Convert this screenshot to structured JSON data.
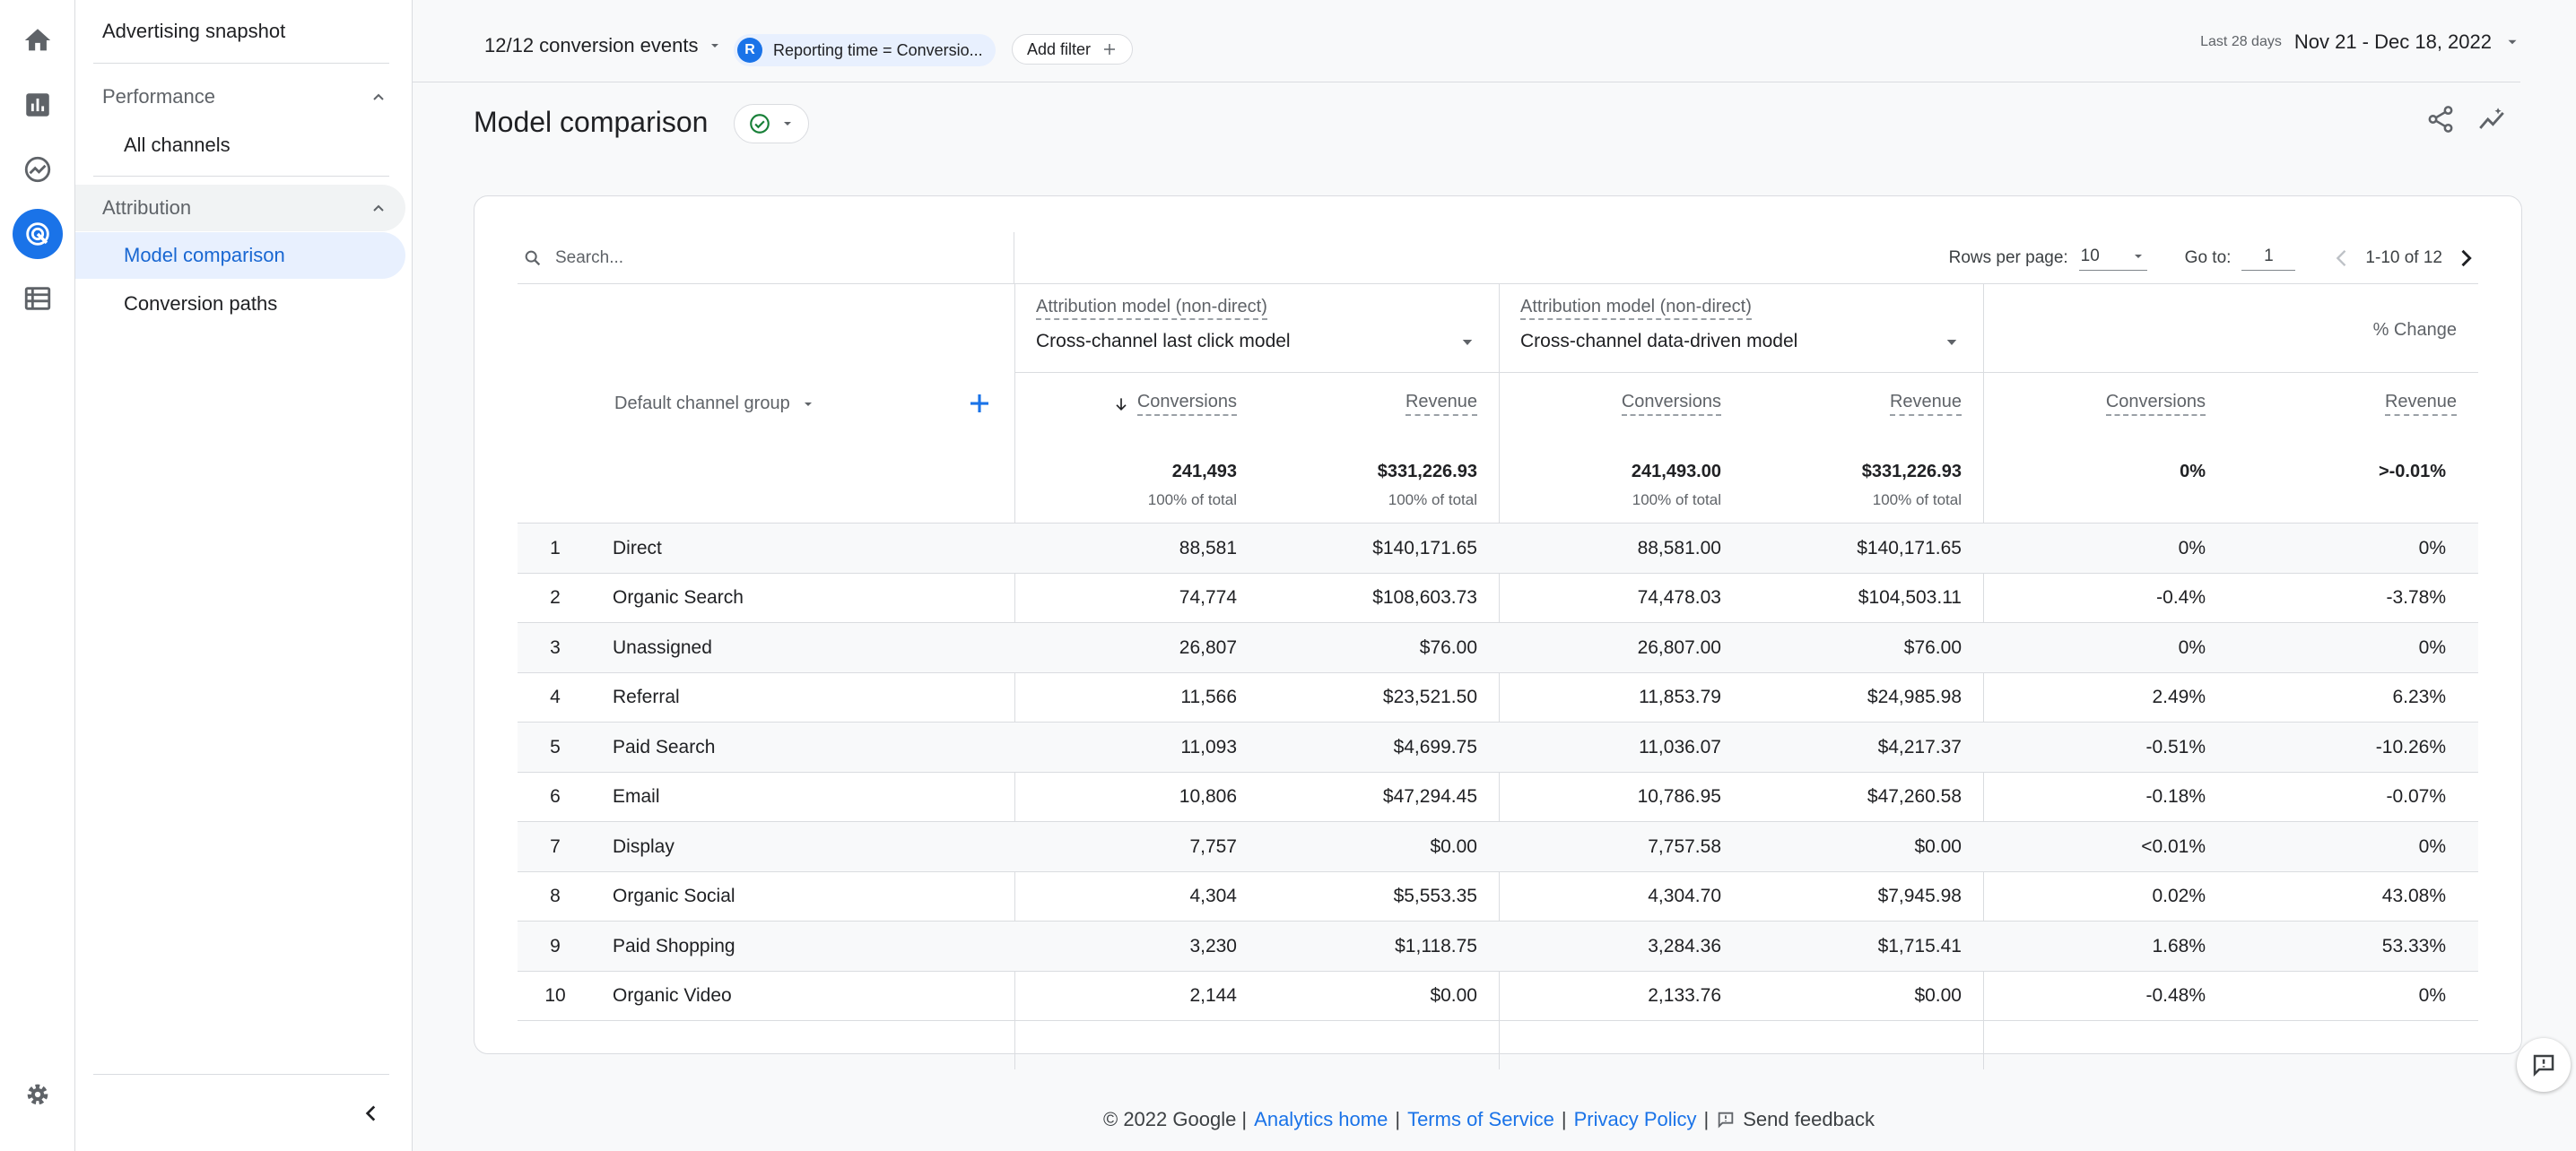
{
  "nav": {
    "top_item": "Advertising snapshot",
    "performance": {
      "label": "Performance",
      "items": [
        "All channels"
      ]
    },
    "attribution": {
      "label": "Attribution",
      "items": [
        "Model comparison",
        "Conversion paths"
      ]
    }
  },
  "topbar": {
    "conversion_events": "12/12 conversion events",
    "chip_letter": "R",
    "chip_label": "Reporting time = Conversio...",
    "add_filter": "Add filter",
    "date_prefix": "Last 28 days",
    "date_range": "Nov 21 - Dec 18, 2022"
  },
  "page": {
    "title": "Model comparison"
  },
  "table": {
    "search_placeholder": "Search...",
    "rows_per_page_label": "Rows per page:",
    "rows_per_page": "10",
    "goto_label": "Go to:",
    "goto_value": "1",
    "range": "1-10 of 12",
    "model_label": "Attribution model (non-direct)",
    "model_a": "Cross-channel last click model",
    "model_b": "Cross-channel data-driven model",
    "pct_change": "% Change",
    "dimension": "Default channel group",
    "metrics": [
      "Conversions",
      "Revenue",
      "Conversions",
      "Revenue",
      "Conversions",
      "Revenue"
    ],
    "totals": {
      "a_conv": "241,493",
      "a_rev": "$331,226.93",
      "b_conv": "241,493.00",
      "b_rev": "$331,226.93",
      "c_conv": "0%",
      "c_rev": ">-0.01%",
      "of_total": "100% of total"
    },
    "rows": [
      {
        "i": "1",
        "name": "Direct",
        "a_conv": "88,581",
        "a_rev": "$140,171.65",
        "b_conv": "88,581.00",
        "b_rev": "$140,171.65",
        "c_conv": "0%",
        "c_rev": "0%"
      },
      {
        "i": "2",
        "name": "Organic Search",
        "a_conv": "74,774",
        "a_rev": "$108,603.73",
        "b_conv": "74,478.03",
        "b_rev": "$104,503.11",
        "c_conv": "-0.4%",
        "c_rev": "-3.78%"
      },
      {
        "i": "3",
        "name": "Unassigned",
        "a_conv": "26,807",
        "a_rev": "$76.00",
        "b_conv": "26,807.00",
        "b_rev": "$76.00",
        "c_conv": "0%",
        "c_rev": "0%"
      },
      {
        "i": "4",
        "name": "Referral",
        "a_conv": "11,566",
        "a_rev": "$23,521.50",
        "b_conv": "11,853.79",
        "b_rev": "$24,985.98",
        "c_conv": "2.49%",
        "c_rev": "6.23%"
      },
      {
        "i": "5",
        "name": "Paid Search",
        "a_conv": "11,093",
        "a_rev": "$4,699.75",
        "b_conv": "11,036.07",
        "b_rev": "$4,217.37",
        "c_conv": "-0.51%",
        "c_rev": "-10.26%"
      },
      {
        "i": "6",
        "name": "Email",
        "a_conv": "10,806",
        "a_rev": "$47,294.45",
        "b_conv": "10,786.95",
        "b_rev": "$47,260.58",
        "c_conv": "-0.18%",
        "c_rev": "-0.07%"
      },
      {
        "i": "7",
        "name": "Display",
        "a_conv": "7,757",
        "a_rev": "$0.00",
        "b_conv": "7,757.58",
        "b_rev": "$0.00",
        "c_conv": "<0.01%",
        "c_rev": "0%"
      },
      {
        "i": "8",
        "name": "Organic Social",
        "a_conv": "4,304",
        "a_rev": "$5,553.35",
        "b_conv": "4,304.70",
        "b_rev": "$7,945.98",
        "c_conv": "0.02%",
        "c_rev": "43.08%"
      },
      {
        "i": "9",
        "name": "Paid Shopping",
        "a_conv": "3,230",
        "a_rev": "$1,118.75",
        "b_conv": "3,284.36",
        "b_rev": "$1,715.41",
        "c_conv": "1.68%",
        "c_rev": "53.33%"
      },
      {
        "i": "10",
        "name": "Organic Video",
        "a_conv": "2,144",
        "a_rev": "$0.00",
        "b_conv": "2,133.76",
        "b_rev": "$0.00",
        "c_conv": "-0.48%",
        "c_rev": "0%"
      }
    ]
  },
  "footer": {
    "copyright": "© 2022 Google |",
    "analytics_home": "Analytics home",
    "terms": "Terms of Service",
    "privacy": "Privacy Policy",
    "sep": "|",
    "send_feedback": "Send feedback"
  },
  "icons": {
    "rail": [
      "home-icon",
      "reports-icon",
      "explore-icon",
      "advertising-icon",
      "configure-icon",
      "settings-icon"
    ]
  },
  "colors": {
    "accent": "#1a73e8",
    "active_nav_bg": "#e8f0fe",
    "success": "#188038"
  }
}
